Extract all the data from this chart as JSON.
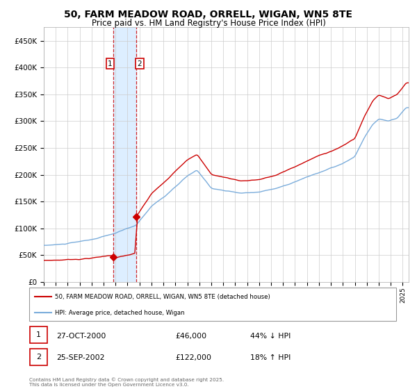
{
  "title": "50, FARM MEADOW ROAD, ORRELL, WIGAN, WN5 8TE",
  "subtitle": "Price paid vs. HM Land Registry's House Price Index (HPI)",
  "title_fontsize": 10,
  "subtitle_fontsize": 8.5,
  "bg_color": "#ffffff",
  "plot_bg_color": "#ffffff",
  "grid_color": "#cccccc",
  "red_color": "#cc0000",
  "blue_color": "#7aacdb",
  "shade_color": "#ddeeff",
  "sale1_date_num": 2000.82,
  "sale2_date_num": 2002.73,
  "sale1_price": 46000,
  "sale2_price": 122000,
  "legend1_text": "50, FARM MEADOW ROAD, ORRELL, WIGAN, WN5 8TE (detached house)",
  "legend2_text": "HPI: Average price, detached house, Wigan",
  "table_rows": [
    {
      "num": "1",
      "date": "27-OCT-2000",
      "price": "£46,000",
      "hpi": "44% ↓ HPI"
    },
    {
      "num": "2",
      "date": "25-SEP-2002",
      "price": "£122,000",
      "hpi": "18% ↑ HPI"
    }
  ],
  "footer": "Contains HM Land Registry data © Crown copyright and database right 2025.\nThis data is licensed under the Open Government Licence v3.0.",
  "xmin": 1995.0,
  "xmax": 2025.5,
  "ymin": 0,
  "ymax": 475000
}
